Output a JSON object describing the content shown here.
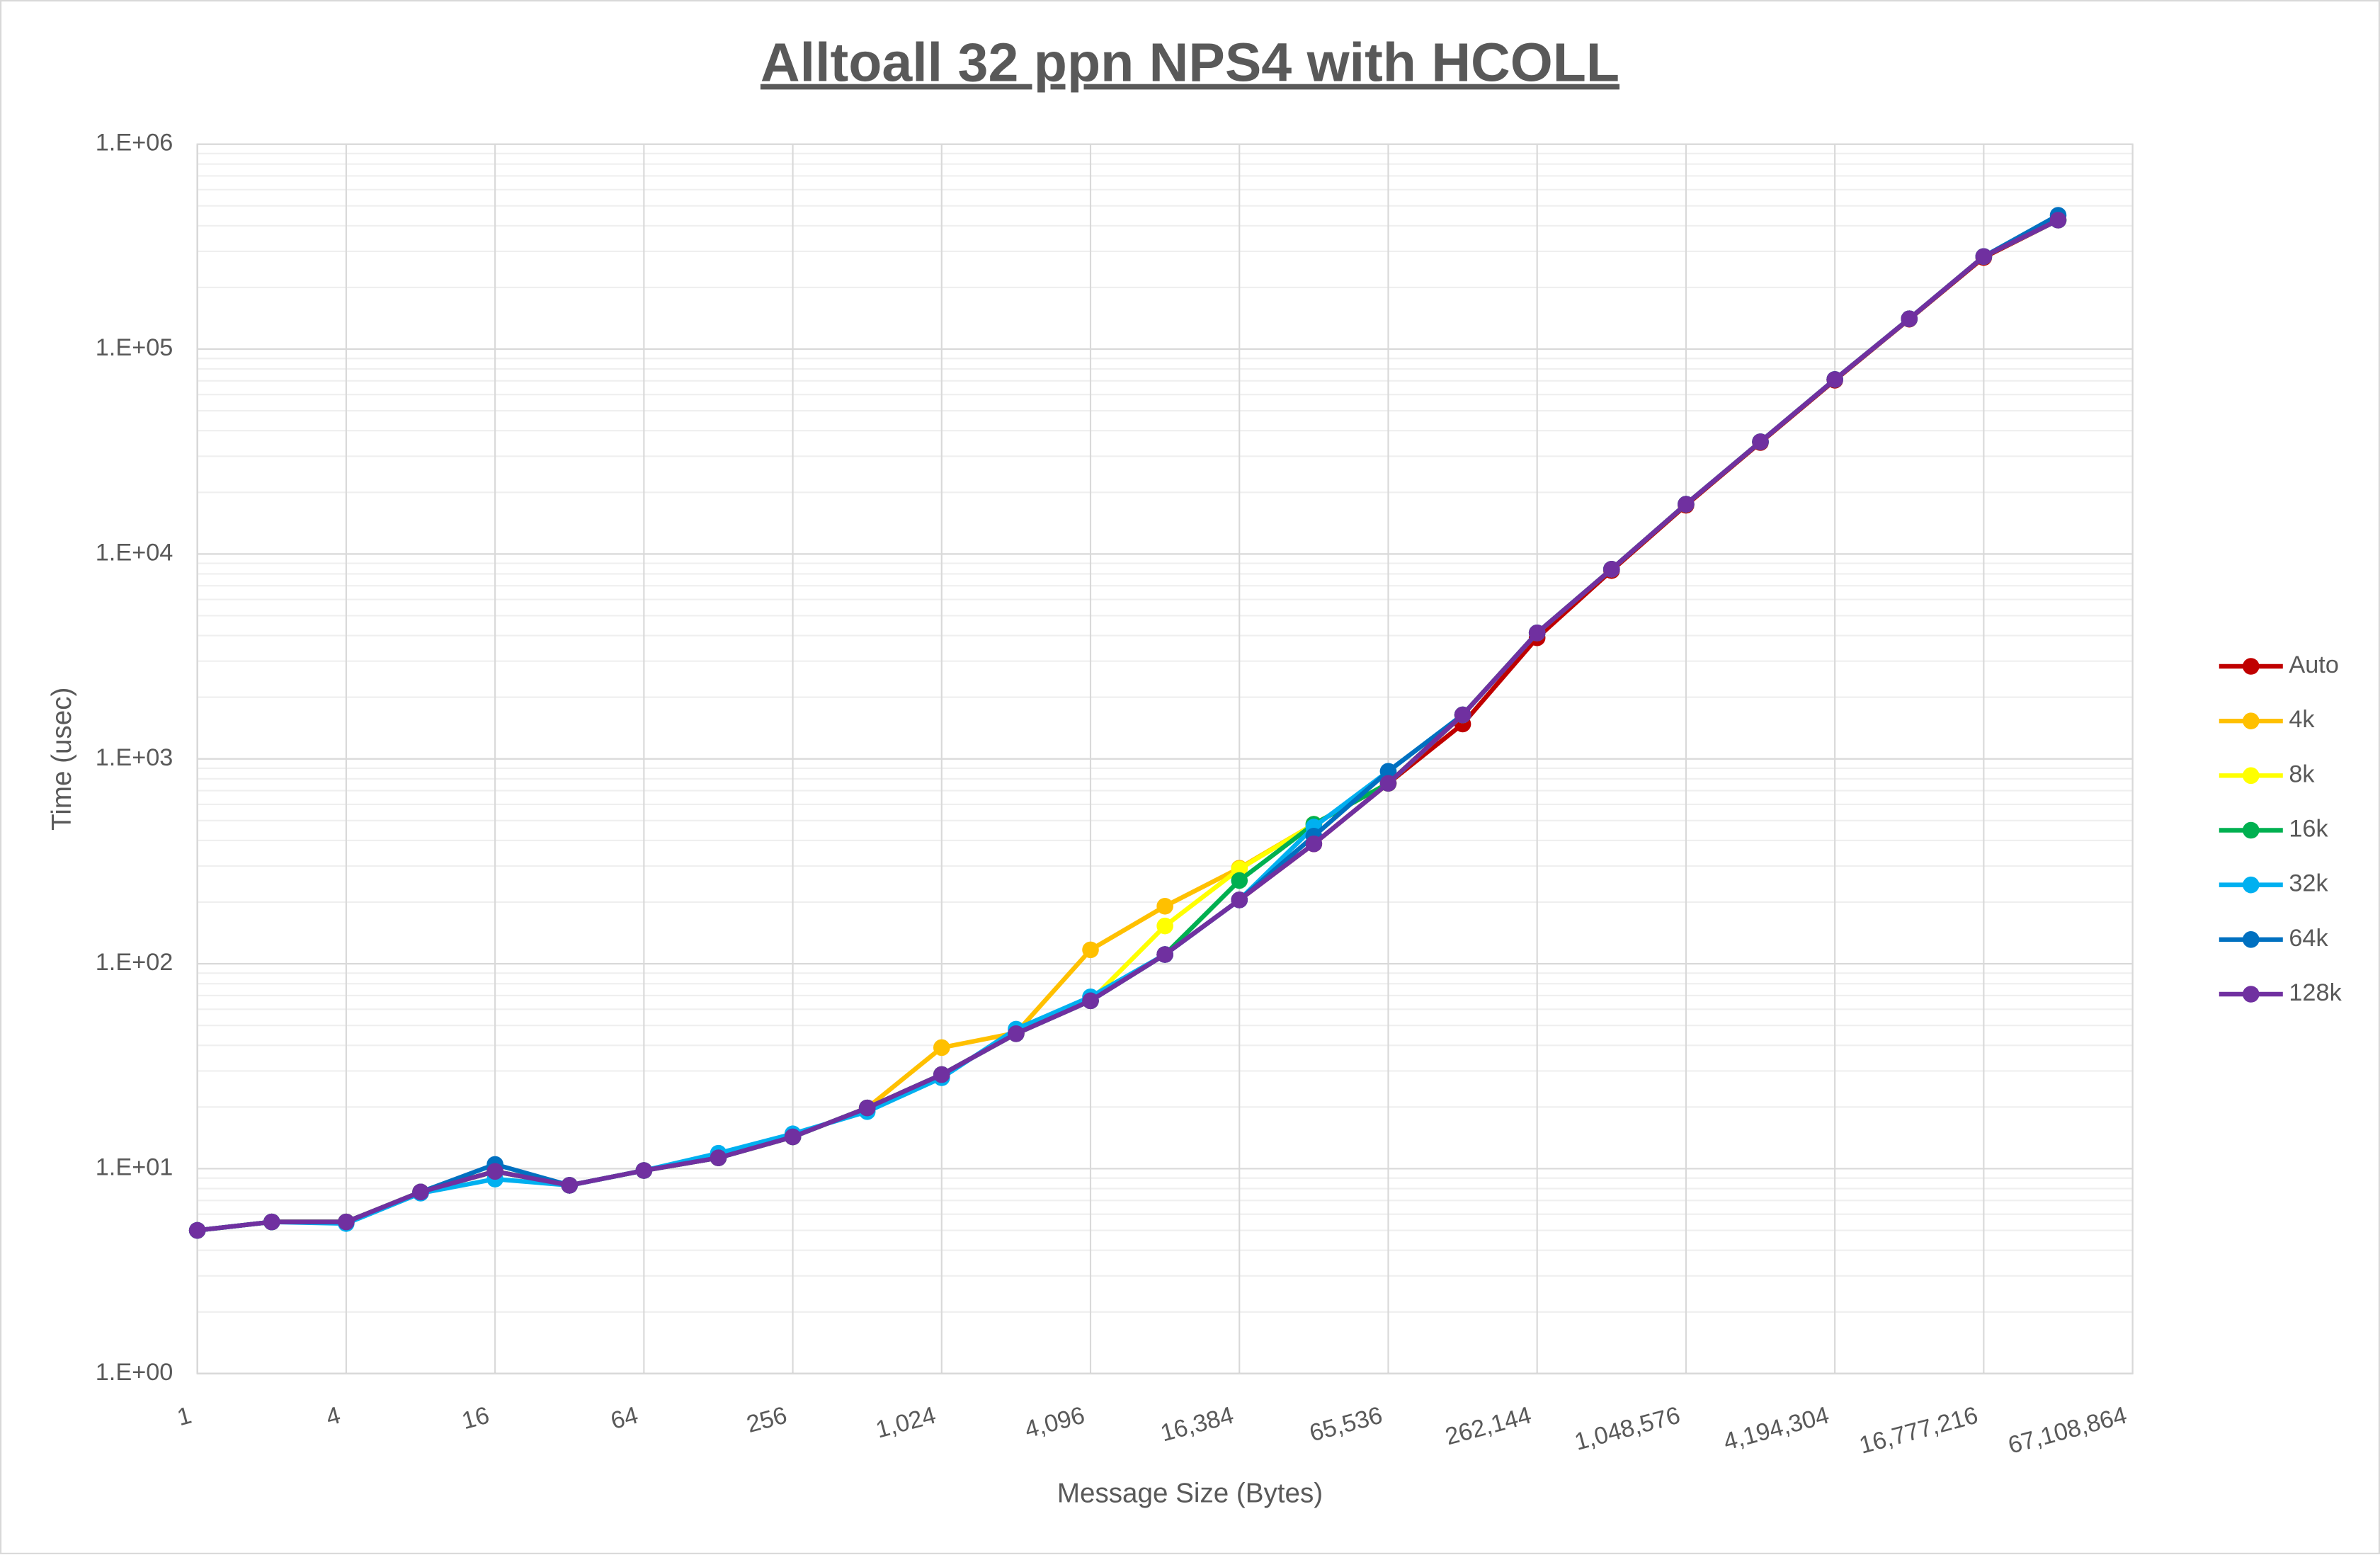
{
  "chart_data": {
    "type": "line",
    "title": "Alltoall 32 ppn NPS4 with HCOLL",
    "x_label": "Message Size (Bytes)",
    "y_label": "Time (usec)",
    "x_log_base": 2,
    "y_log_base": 10,
    "grid": true,
    "minor_grid": true,
    "legend": "right",
    "xlim": [
      1,
      67108864
    ],
    "xticks": [
      1,
      4,
      16,
      64,
      256,
      {
        "value": 1024,
        "label": "1,024"
      },
      {
        "value": 4096,
        "label": "4,096"
      },
      {
        "value": 16384,
        "label": "16,384"
      },
      {
        "value": 65536,
        "label": "65,536"
      },
      {
        "value": 262144,
        "label": "262,144"
      },
      {
        "value": 1048576,
        "label": "1,048,576"
      },
      {
        "value": 4194304,
        "label": "4,194,304"
      },
      {
        "value": 16777216,
        "label": "16,777,216"
      },
      {
        "value": 67108864,
        "label": "67,108,864"
      }
    ],
    "ylim": [
      1,
      1000000
    ],
    "yticks": [
      {
        "value": 1,
        "label": "1.E+00"
      },
      {
        "value": 10,
        "label": "1.E+01"
      },
      {
        "value": 100,
        "label": "1.E+02"
      },
      {
        "value": 1000,
        "label": "1.E+03"
      },
      {
        "value": 10000,
        "label": "1.E+04"
      },
      {
        "value": 100000,
        "label": "1.E+05"
      },
      {
        "value": 1000000,
        "label": "1.E+06"
      }
    ],
    "x": [
      1,
      2,
      4,
      8,
      16,
      32,
      64,
      128,
      256,
      512,
      1024,
      2048,
      4096,
      8192,
      16384,
      32768,
      65536,
      131072,
      262144,
      524288,
      1048576,
      2097152,
      4194304,
      8388608,
      16777216,
      33554432
    ],
    "series": [
      {
        "name": "Auto",
        "color": "#c00000",
        "values": [
          5.0,
          5.5,
          5.5,
          7.7,
          9.7,
          8.3,
          9.8,
          11.3,
          14.3,
          19.8,
          28.8,
          45.6,
          66,
          111,
          205,
          385,
          760,
          1480,
          3900,
          8300,
          17300,
          35000,
          70500,
          140000,
          280000,
          426000
        ]
      },
      {
        "name": "4k",
        "color": "#ffc000",
        "values": [
          5.0,
          5.5,
          5.5,
          7.7,
          9.7,
          8.3,
          9.8,
          11.3,
          14.3,
          19.8,
          39,
          46,
          117,
          191,
          293,
          480,
          760,
          1640,
          4120,
          8430,
          17500,
          35300,
          71100,
          140600,
          283000,
          426000
        ]
      },
      {
        "name": "8k",
        "color": "#ffff00",
        "values": [
          5.0,
          5.5,
          5.5,
          7.7,
          9.7,
          8.3,
          9.8,
          11.3,
          14.3,
          19.8,
          28.8,
          45.6,
          66,
          153,
          290,
          480,
          760,
          1640,
          4120,
          8430,
          17500,
          35300,
          71100,
          140600,
          283000,
          426000
        ]
      },
      {
        "name": "16k",
        "color": "#00b050",
        "values": [
          5.0,
          5.5,
          5.5,
          7.7,
          9.7,
          8.3,
          9.8,
          11.3,
          14.3,
          19.8,
          28.8,
          45.6,
          66,
          111,
          255,
          480,
          760,
          1640,
          4120,
          8430,
          17500,
          35300,
          71100,
          140600,
          283000,
          426000
        ]
      },
      {
        "name": "32k",
        "color": "#00b0f0",
        "values": [
          5.0,
          5.5,
          5.4,
          7.6,
          8.9,
          8.3,
          9.8,
          11.9,
          14.8,
          19.0,
          27.8,
          48,
          69,
          111,
          205,
          465,
          870,
          1640,
          4120,
          8430,
          17500,
          35300,
          71100,
          140600,
          283000,
          426000
        ]
      },
      {
        "name": "64k",
        "color": "#0070c0",
        "values": [
          5.0,
          5.5,
          5.5,
          7.7,
          10.5,
          8.3,
          9.8,
          11.3,
          14.3,
          19.8,
          28.8,
          45.6,
          66,
          111,
          205,
          420,
          870,
          1640,
          4120,
          8430,
          17500,
          35300,
          71100,
          140600,
          283000,
          450000
        ]
      },
      {
        "name": "128k",
        "color": "#7030a0",
        "values": [
          5.0,
          5.5,
          5.5,
          7.7,
          9.7,
          8.3,
          9.8,
          11.3,
          14.3,
          19.8,
          28.8,
          45.6,
          66,
          111,
          205,
          385,
          760,
          1640,
          4120,
          8430,
          17500,
          35300,
          71100,
          140600,
          283000,
          426000
        ]
      }
    ]
  }
}
